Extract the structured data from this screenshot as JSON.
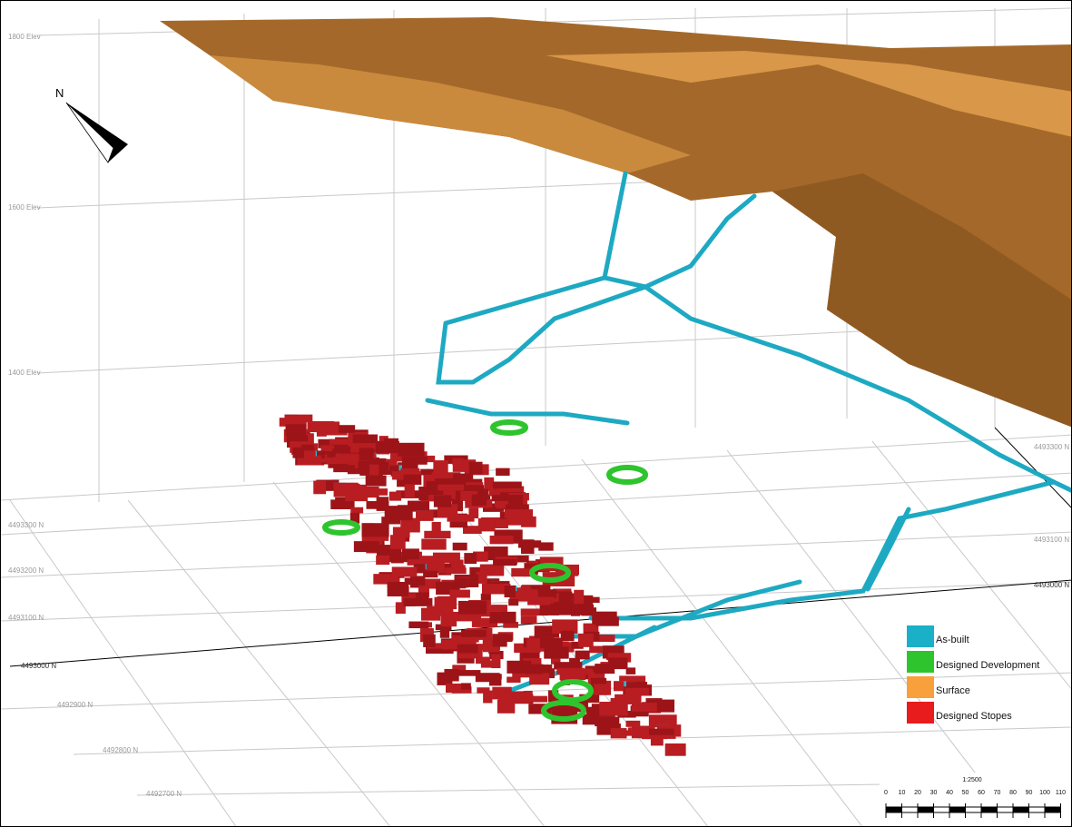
{
  "north_label": "N",
  "grid_labels": {
    "elevation": [
      "1800 Elev",
      "1600 Elev",
      "1400 Elev"
    ],
    "northing_left": [
      "4493300 N",
      "4493200 N",
      "4493100 N",
      "4493000 N",
      "4492900 N",
      "4492800 N",
      "4492700 N"
    ],
    "northing_right": [
      "4493300 N",
      "4493100 N",
      "4493000 N"
    ]
  },
  "legend": [
    "As-built",
    "Designed Development",
    "Surface",
    "Designed Stopes"
  ],
  "scale_bar": {
    "ratio": "1:2500",
    "labels": [
      0,
      10,
      20,
      30,
      40,
      50,
      60,
      70,
      80,
      90,
      100,
      110
    ]
  }
}
